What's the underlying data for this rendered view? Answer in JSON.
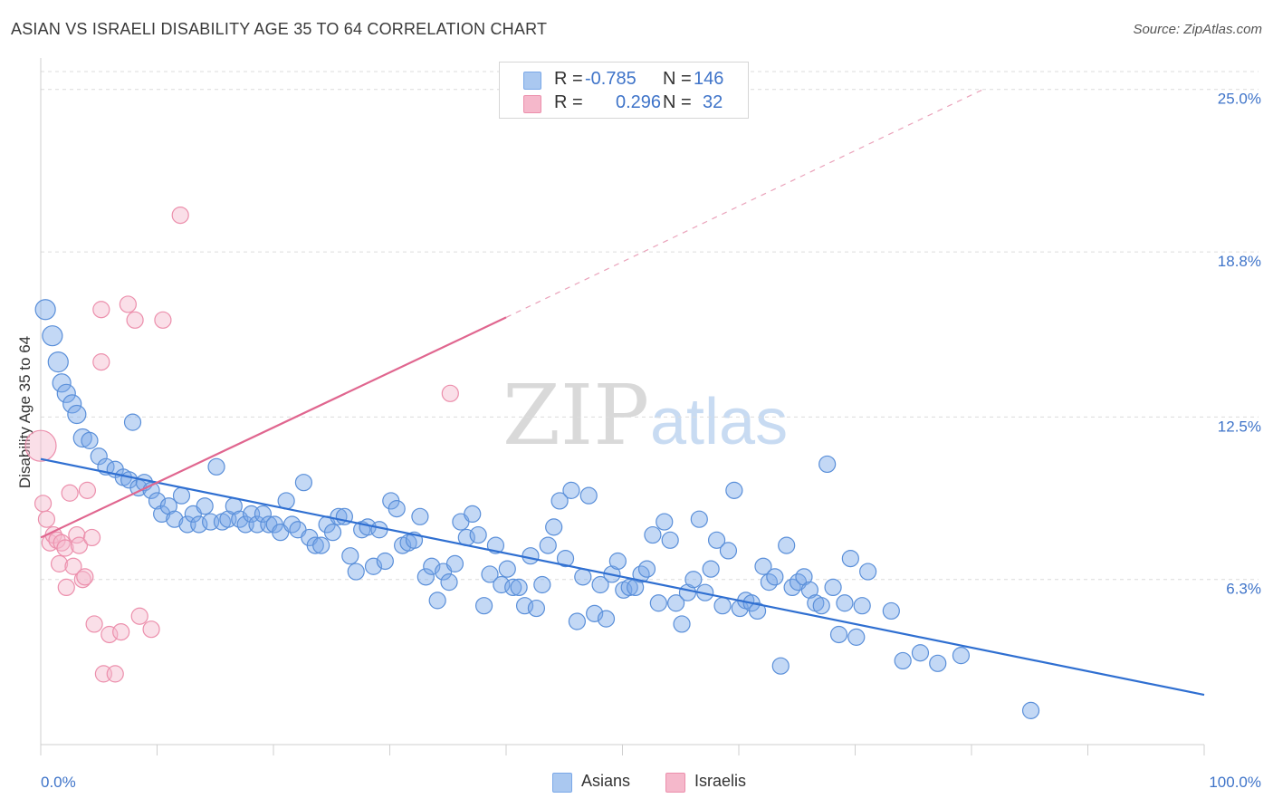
{
  "title": "ASIAN VS ISRAELI DISABILITY AGE 35 TO 64 CORRELATION CHART",
  "source": "Source: ZipAtlas.com",
  "watermark": {
    "zip": "ZIP",
    "atlas": "atlas"
  },
  "legend": {
    "rows": [
      {
        "r_label": "R =",
        "r_value": "-0.785",
        "n_label": "N =",
        "n_value": "146",
        "color": "#aac8f0"
      },
      {
        "r_label": "R =",
        "r_value": "0.296",
        "n_label": "N =",
        "n_value": "32",
        "color": "#f5b8cb"
      }
    ]
  },
  "bottom_legend": [
    {
      "label": "Asians",
      "color": "#aac8f0"
    },
    {
      "label": "Israelis",
      "color": "#f5b8cb"
    }
  ],
  "chart_data": {
    "type": "scatter",
    "title": "ASIAN VS ISRAELI DISABILITY AGE 35 TO 64 CORRELATION CHART",
    "xlabel": "",
    "ylabel": "Disability Age 35 to 64",
    "xlim": [
      0,
      100
    ],
    "ylim": [
      0,
      26.2
    ],
    "x_tick_labels": [
      "0.0%",
      "100.0%"
    ],
    "y_ticks": [
      6.3,
      12.5,
      18.8,
      25.0
    ],
    "y_tick_labels": [
      "6.3%",
      "12.5%",
      "18.8%",
      "25.0%"
    ],
    "grid": "horizontal dashed",
    "legend_position": "top-center",
    "series": [
      {
        "name": "Asians",
        "color": "#7aa8e8",
        "stroke": "#5a8fd9",
        "trend": {
          "x": [
            0,
            100
          ],
          "y": [
            10.9,
            1.9
          ],
          "color": "#2f6fd1"
        },
        "points": [
          [
            0.4,
            16.6,
            11
          ],
          [
            1.0,
            15.6,
            11
          ],
          [
            1.5,
            14.6,
            11
          ],
          [
            1.8,
            13.8,
            10
          ],
          [
            2.2,
            13.4,
            10
          ],
          [
            2.7,
            13.0,
            10
          ],
          [
            3.1,
            12.6,
            10
          ],
          [
            3.6,
            11.7,
            10
          ],
          [
            4.2,
            11.6,
            9
          ],
          [
            5.0,
            11.0,
            9
          ],
          [
            5.6,
            10.6,
            9
          ],
          [
            6.4,
            10.5,
            9
          ],
          [
            7.1,
            10.2,
            9
          ],
          [
            7.6,
            10.1,
            9
          ],
          [
            7.9,
            12.3,
            9
          ],
          [
            8.4,
            9.8,
            9
          ],
          [
            8.9,
            10.0,
            9
          ],
          [
            9.5,
            9.7,
            9
          ],
          [
            10.0,
            9.3,
            9
          ],
          [
            10.4,
            8.8,
            9
          ],
          [
            11.0,
            9.1,
            9
          ],
          [
            11.5,
            8.6,
            9
          ],
          [
            12.1,
            9.5,
            9
          ],
          [
            12.6,
            8.4,
            9
          ],
          [
            13.1,
            8.8,
            9
          ],
          [
            13.6,
            8.4,
            9
          ],
          [
            14.1,
            9.1,
            9
          ],
          [
            14.6,
            8.5,
            9
          ],
          [
            15.1,
            10.6,
            9
          ],
          [
            15.6,
            8.5,
            9
          ],
          [
            16.1,
            8.6,
            9
          ],
          [
            16.6,
            9.1,
            9
          ],
          [
            17.1,
            8.6,
            9
          ],
          [
            17.6,
            8.4,
            9
          ],
          [
            18.1,
            8.8,
            9
          ],
          [
            18.6,
            8.4,
            9
          ],
          [
            19.1,
            8.8,
            9
          ],
          [
            19.6,
            8.4,
            9
          ],
          [
            20.1,
            8.4,
            9
          ],
          [
            20.6,
            8.1,
            9
          ],
          [
            21.1,
            9.3,
            9
          ],
          [
            21.6,
            8.4,
            9
          ],
          [
            22.1,
            8.2,
            9
          ],
          [
            22.6,
            10.0,
            9
          ],
          [
            23.1,
            7.9,
            9
          ],
          [
            23.6,
            7.6,
            9
          ],
          [
            24.1,
            7.6,
            9
          ],
          [
            24.6,
            8.4,
            9
          ],
          [
            25.1,
            8.1,
            9
          ],
          [
            25.6,
            8.7,
            9
          ],
          [
            26.1,
            8.7,
            9
          ],
          [
            26.6,
            7.2,
            9
          ],
          [
            27.1,
            6.6,
            9
          ],
          [
            27.6,
            8.2,
            9
          ],
          [
            28.1,
            8.3,
            9
          ],
          [
            28.6,
            6.8,
            9
          ],
          [
            29.1,
            8.2,
            9
          ],
          [
            29.6,
            7.0,
            9
          ],
          [
            30.1,
            9.3,
            9
          ],
          [
            30.6,
            9.0,
            9
          ],
          [
            31.1,
            7.6,
            9
          ],
          [
            31.6,
            7.7,
            9
          ],
          [
            32.1,
            7.8,
            9
          ],
          [
            32.6,
            8.7,
            9
          ],
          [
            33.1,
            6.4,
            9
          ],
          [
            33.6,
            6.8,
            9
          ],
          [
            34.1,
            5.5,
            9
          ],
          [
            34.6,
            6.6,
            9
          ],
          [
            35.1,
            6.2,
            9
          ],
          [
            35.6,
            6.9,
            9
          ],
          [
            36.1,
            8.5,
            9
          ],
          [
            36.6,
            7.9,
            9
          ],
          [
            37.1,
            8.8,
            9
          ],
          [
            37.6,
            8.0,
            9
          ],
          [
            38.1,
            5.3,
            9
          ],
          [
            38.6,
            6.5,
            9
          ],
          [
            39.1,
            7.6,
            9
          ],
          [
            39.6,
            6.1,
            9
          ],
          [
            40.1,
            6.7,
            9
          ],
          [
            40.6,
            6.0,
            9
          ],
          [
            41.1,
            6.0,
            9
          ],
          [
            41.6,
            5.3,
            9
          ],
          [
            42.1,
            7.2,
            9
          ],
          [
            42.6,
            5.2,
            9
          ],
          [
            43.1,
            6.1,
            9
          ],
          [
            43.6,
            7.6,
            9
          ],
          [
            44.1,
            8.3,
            9
          ],
          [
            44.6,
            9.3,
            9
          ],
          [
            45.1,
            7.1,
            9
          ],
          [
            45.6,
            9.7,
            9
          ],
          [
            46.1,
            4.7,
            9
          ],
          [
            46.6,
            6.4,
            9
          ],
          [
            47.1,
            9.5,
            9
          ],
          [
            47.6,
            5.0,
            9
          ],
          [
            48.1,
            6.1,
            9
          ],
          [
            48.6,
            4.8,
            9
          ],
          [
            49.1,
            6.5,
            9
          ],
          [
            49.6,
            7.0,
            9
          ],
          [
            50.1,
            5.9,
            9
          ],
          [
            50.6,
            6.0,
            9
          ],
          [
            51.1,
            6.0,
            9
          ],
          [
            51.6,
            6.5,
            9
          ],
          [
            52.1,
            6.7,
            9
          ],
          [
            52.6,
            8.0,
            9
          ],
          [
            53.1,
            5.4,
            9
          ],
          [
            53.6,
            8.5,
            9
          ],
          [
            54.1,
            7.8,
            9
          ],
          [
            54.6,
            5.4,
            9
          ],
          [
            55.1,
            4.6,
            9
          ],
          [
            55.6,
            5.8,
            9
          ],
          [
            56.1,
            6.3,
            9
          ],
          [
            56.6,
            8.6,
            9
          ],
          [
            57.1,
            5.8,
            9
          ],
          [
            57.6,
            6.7,
            9
          ],
          [
            58.1,
            7.8,
            9
          ],
          [
            58.6,
            5.3,
            9
          ],
          [
            59.1,
            7.4,
            9
          ],
          [
            59.6,
            9.7,
            9
          ],
          [
            60.1,
            5.2,
            9
          ],
          [
            60.6,
            5.5,
            9
          ],
          [
            61.1,
            5.4,
            9
          ],
          [
            61.6,
            5.1,
            9
          ],
          [
            62.1,
            6.8,
            9
          ],
          [
            62.6,
            6.2,
            9
          ],
          [
            63.1,
            6.4,
            9
          ],
          [
            63.6,
            3.0,
            9
          ],
          [
            64.1,
            7.6,
            9
          ],
          [
            64.6,
            6.0,
            9
          ],
          [
            65.1,
            6.2,
            9
          ],
          [
            65.6,
            6.4,
            9
          ],
          [
            66.1,
            5.9,
            9
          ],
          [
            66.6,
            5.4,
            9
          ],
          [
            67.1,
            5.3,
            9
          ],
          [
            67.6,
            10.7,
            9
          ],
          [
            68.1,
            6.0,
            9
          ],
          [
            68.6,
            4.2,
            9
          ],
          [
            69.1,
            5.4,
            9
          ],
          [
            69.6,
            7.1,
            9
          ],
          [
            70.1,
            4.1,
            9
          ],
          [
            70.6,
            5.3,
            9
          ],
          [
            71.1,
            6.6,
            9
          ],
          [
            73.1,
            5.1,
            9
          ],
          [
            74.1,
            3.2,
            9
          ],
          [
            75.6,
            3.5,
            9
          ],
          [
            77.1,
            3.1,
            9
          ],
          [
            79.1,
            3.4,
            9
          ],
          [
            85.1,
            1.3,
            9
          ]
        ]
      },
      {
        "name": "Israelis",
        "color": "#f5b8cb",
        "stroke": "#ec8fac",
        "trend": {
          "x": [
            0,
            40
          ],
          "y": [
            7.9,
            16.3
          ],
          "color": "#e0668f",
          "dashed_extension_to": [
            81,
            25.0
          ]
        },
        "points": [
          [
            0.0,
            11.4,
            17
          ],
          [
            0.2,
            9.2,
            9
          ],
          [
            0.5,
            8.6,
            9
          ],
          [
            0.8,
            7.7,
            9
          ],
          [
            1.1,
            8.0,
            9
          ],
          [
            1.4,
            7.8,
            9
          ],
          [
            1.6,
            6.9,
            9
          ],
          [
            1.8,
            7.7,
            9
          ],
          [
            2.1,
            7.5,
            9
          ],
          [
            2.2,
            6.0,
            9
          ],
          [
            2.5,
            9.6,
            9
          ],
          [
            2.8,
            6.8,
            9
          ],
          [
            3.1,
            8.0,
            9
          ],
          [
            3.3,
            7.6,
            9
          ],
          [
            3.6,
            6.3,
            9
          ],
          [
            3.8,
            6.4,
            9
          ],
          [
            4.0,
            9.7,
            9
          ],
          [
            4.4,
            7.9,
            9
          ],
          [
            4.6,
            4.6,
            9
          ],
          [
            5.2,
            14.6,
            9
          ],
          [
            5.2,
            16.6,
            9
          ],
          [
            5.4,
            2.7,
            9
          ],
          [
            5.9,
            4.2,
            9
          ],
          [
            6.4,
            2.7,
            9
          ],
          [
            6.9,
            4.3,
            9
          ],
          [
            7.5,
            16.8,
            9
          ],
          [
            8.1,
            16.2,
            9
          ],
          [
            8.5,
            4.9,
            9
          ],
          [
            9.5,
            4.4,
            9
          ],
          [
            10.5,
            16.2,
            9
          ],
          [
            12.0,
            20.2,
            9
          ],
          [
            35.2,
            13.4,
            9
          ]
        ]
      }
    ]
  }
}
